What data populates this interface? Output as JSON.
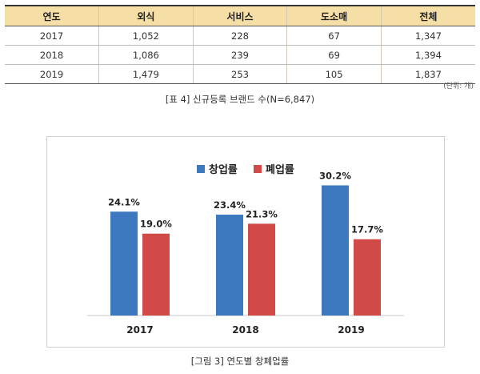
{
  "table": {
    "headers": [
      "연도",
      "외식",
      "서비스",
      "도소매",
      "전체"
    ],
    "rows": [
      [
        "2017",
        "1,052",
        "228",
        "67",
        "1,347"
      ],
      [
        "2018",
        "1,086",
        "239",
        "69",
        "1,394"
      ],
      [
        "2019",
        "1,479",
        "253",
        "105",
        "1,837"
      ]
    ],
    "unit_note": "(단위: 개)",
    "caption": "[표 4] 신규등록 브랜드 수(N=6,847)"
  },
  "figure_caption": "[그림 3] 연도별 창폐업률",
  "chart_data": {
    "type": "bar",
    "categories": [
      "2017",
      "2018",
      "2019"
    ],
    "series": [
      {
        "name": "창업률",
        "values": [
          24.1,
          23.4,
          30.2
        ],
        "labels": [
          "24.1%",
          "23.4%",
          "30.2%"
        ],
        "color": "#3b78be"
      },
      {
        "name": "폐업률",
        "values": [
          19.0,
          21.3,
          17.7
        ],
        "labels": [
          "19.0%",
          "21.3%",
          "17.7%"
        ],
        "color": "#d14a48"
      }
    ],
    "ylim": [
      0,
      34
    ],
    "grid": false,
    "legend": "top-center"
  }
}
